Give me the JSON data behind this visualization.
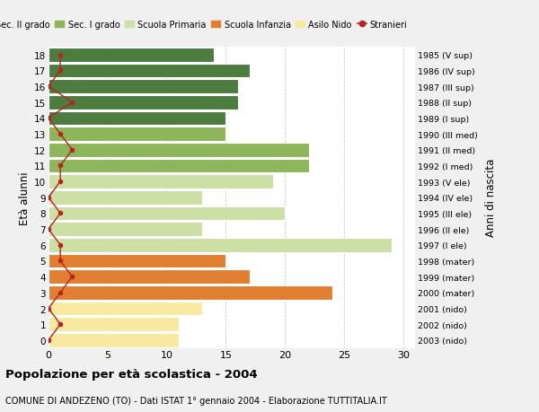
{
  "ages": [
    0,
    1,
    2,
    3,
    4,
    5,
    6,
    7,
    8,
    9,
    10,
    11,
    12,
    13,
    14,
    15,
    16,
    17,
    18
  ],
  "right_labels": [
    "2003 (nido)",
    "2002 (nido)",
    "2001 (nido)",
    "2000 (mater)",
    "1999 (mater)",
    "1998 (mater)",
    "1997 (I ele)",
    "1996 (II ele)",
    "1995 (III ele)",
    "1994 (IV ele)",
    "1993 (V ele)",
    "1992 (I med)",
    "1991 (II med)",
    "1990 (III med)",
    "1989 (I sup)",
    "1988 (II sup)",
    "1987 (III sup)",
    "1986 (IV sup)",
    "1985 (V sup)"
  ],
  "bar_values": [
    11,
    11,
    13,
    24,
    17,
    15,
    29,
    13,
    20,
    13,
    19,
    22,
    22,
    15,
    15,
    16,
    16,
    17,
    14
  ],
  "bar_colors": [
    "#f9e9a0",
    "#f9e9a0",
    "#f9e9a0",
    "#e07e32",
    "#e07e32",
    "#e07e32",
    "#ccdfa4",
    "#ccdfa4",
    "#ccdfa4",
    "#ccdfa4",
    "#ccdfa4",
    "#8db55a",
    "#8db55a",
    "#8db55a",
    "#4d7c3f",
    "#4d7c3f",
    "#4d7c3f",
    "#4d7c3f",
    "#4d7c3f"
  ],
  "stranieri_values": [
    0,
    1,
    0,
    1,
    2,
    1,
    1,
    0,
    1,
    0,
    1,
    1,
    2,
    1,
    0,
    2,
    0,
    1,
    1
  ],
  "legend_items": [
    {
      "label": "Sec. II grado",
      "color": "#4d7c3f"
    },
    {
      "label": "Sec. I grado",
      "color": "#8db55a"
    },
    {
      "label": "Scuola Primaria",
      "color": "#ccdfa4"
    },
    {
      "label": "Scuola Infanzia",
      "color": "#e07e32"
    },
    {
      "label": "Asilo Nido",
      "color": "#f9e9a0"
    },
    {
      "label": "Stranieri",
      "color": "#bb2222"
    }
  ],
  "ylabel": "Età alunni",
  "right_ylabel": "Anni di nascita",
  "title": "Popolazione per età scolastica - 2004",
  "subtitle": "COMUNE DI ANDEZENO (TO) - Dati ISTAT 1° gennaio 2004 - Elaborazione TUTTITALIA.IT",
  "xlim": [
    0,
    31
  ],
  "background_color": "#f0f0f0",
  "bar_background": "#ffffff",
  "grid_color": "#cccccc"
}
